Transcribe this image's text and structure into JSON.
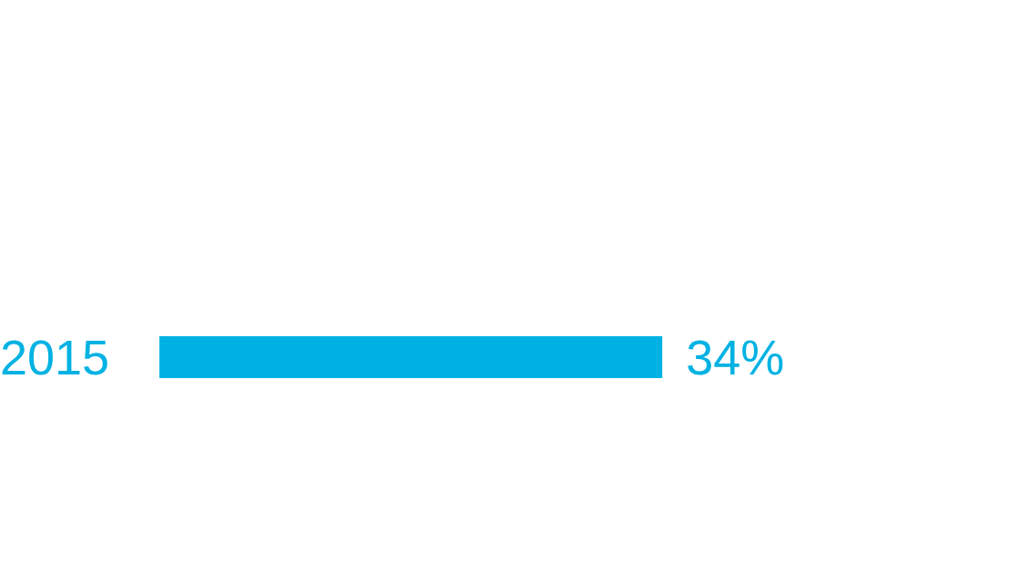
{
  "chart_data": {
    "type": "bar",
    "orientation": "horizontal",
    "categories": [
      "2015"
    ],
    "values": [
      34
    ],
    "color": "#00b2e3",
    "value_labels": [
      "34%"
    ]
  }
}
